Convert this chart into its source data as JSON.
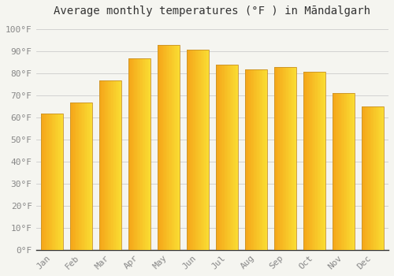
{
  "title": "Average monthly temperatures (°F ) in Māndalgarh",
  "months": [
    "Jan",
    "Feb",
    "Mar",
    "Apr",
    "May",
    "Jun",
    "Jul",
    "Aug",
    "Sep",
    "Oct",
    "Nov",
    "Dec"
  ],
  "values": [
    62,
    67,
    77,
    87,
    93,
    91,
    84,
    82,
    83,
    81,
    71,
    65
  ],
  "bar_color_left": "#F5A623",
  "bar_color_right": "#FFD060",
  "bar_edge_color": "#C8922A",
  "background_color": "#F5F5F0",
  "plot_bg_color": "#F5F5F0",
  "grid_color": "#CCCCCC",
  "yticks": [
    0,
    10,
    20,
    30,
    40,
    50,
    60,
    70,
    80,
    90,
    100
  ],
  "ytick_labels": [
    "0°F",
    "10°F",
    "20°F",
    "30°F",
    "40°F",
    "50°F",
    "60°F",
    "70°F",
    "80°F",
    "90°F",
    "100°F"
  ],
  "ylim": [
    0,
    104
  ],
  "title_fontsize": 10,
  "tick_fontsize": 8,
  "font_family": "monospace",
  "tick_color": "#888888",
  "spine_color": "#333333"
}
